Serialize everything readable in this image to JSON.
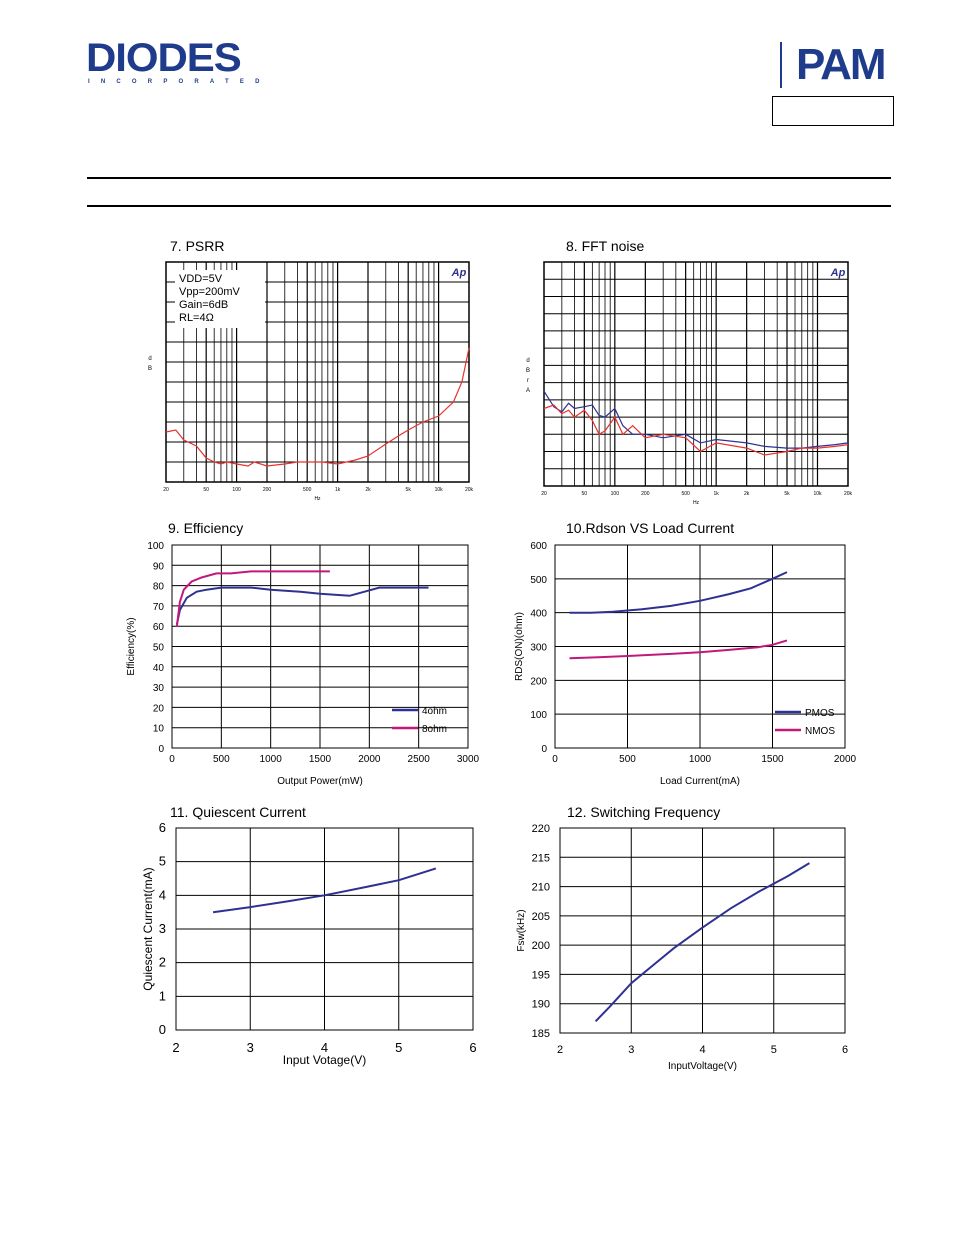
{
  "header": {
    "logo_left": {
      "word": "DIODES",
      "sub": "INCORPORATED"
    },
    "logo_right": {
      "word": "PAM"
    }
  },
  "charts": {
    "psrr": {
      "title": "7. PSRR",
      "ylabel": "dB",
      "xlabel": "Hz",
      "x_ticks": [
        "20",
        "50",
        "100",
        "200",
        "500",
        "1k",
        "2k",
        "5k",
        "10k",
        "20k"
      ],
      "legend": [
        "VDD=5V",
        "Vpp=200mV",
        "Gain=6dB",
        "RL=4Ω"
      ],
      "logo": "Ap"
    },
    "fft": {
      "title": "8. FFT noise",
      "ylabel": "dBrA",
      "xlabel": "Hz",
      "x_ticks": [
        "20",
        "50",
        "100",
        "200",
        "500",
        "1k",
        "2k",
        "5k",
        "10k",
        "20k"
      ],
      "logo": "Ap"
    },
    "efficiency": {
      "title": "9. Efficiency",
      "xlabel": "Output Power(mW)",
      "ylabel": "Efficiency(%)",
      "x_ticks": [
        "0",
        "500",
        "1000",
        "1500",
        "2000",
        "2500",
        "3000"
      ],
      "y_ticks": [
        "0",
        "10",
        "20",
        "30",
        "40",
        "50",
        "60",
        "70",
        "80",
        "90",
        "100"
      ],
      "legend": [
        "4ohm",
        "8ohm"
      ]
    },
    "rdson": {
      "title": "10.Rdson VS Load Current",
      "xlabel": "Load Current(mA)",
      "ylabel": "RDS(ON)(ohm)",
      "x_ticks": [
        "0",
        "500",
        "1000",
        "1500",
        "2000"
      ],
      "y_ticks": [
        "0",
        "100",
        "200",
        "300",
        "400",
        "500",
        "600"
      ],
      "legend": [
        "PMOS",
        "NMOS"
      ]
    },
    "quiescent": {
      "title": "11. Quiescent Current",
      "xlabel": "Input Votage(V)",
      "ylabel": "Quiescent Current(mA)",
      "x_ticks": [
        "2",
        "3",
        "4",
        "5",
        "6"
      ],
      "y_ticks": [
        "0",
        "1",
        "2",
        "3",
        "4",
        "5",
        "6"
      ]
    },
    "fsw": {
      "title": "12. Switching Frequency",
      "xlabel": "InputVoltage(V)",
      "ylabel": "Fsw(kHz)",
      "x_ticks": [
        "2",
        "3",
        "4",
        "5",
        "6"
      ],
      "y_ticks": [
        "185",
        "190",
        "195",
        "200",
        "205",
        "210",
        "215",
        "220"
      ]
    }
  },
  "colors": {
    "blue": "#2e3192",
    "magenta": "#c2187b",
    "red": "#e8322d",
    "brand": "#1f3c8c"
  },
  "chart_data": [
    {
      "type": "line",
      "title": "7. PSRR",
      "xlabel": "Hz",
      "ylabel": "dB",
      "xscale": "log",
      "xlim": [
        20,
        20000
      ],
      "ylim": [
        -110,
        0
      ],
      "series": [
        {
          "x": [
            20,
            25,
            30,
            40,
            50,
            60,
            70,
            80,
            100,
            130,
            150,
            200,
            300,
            400,
            500,
            700,
            1000,
            1500,
            2000,
            3000,
            4000,
            5000,
            7000,
            10000,
            14000,
            17000,
            20000
          ],
          "y": [
            -85,
            -84,
            -89,
            -92,
            -98,
            -100,
            -101,
            -100,
            -101,
            -102,
            -100,
            -102,
            -101,
            -100,
            -100,
            -100,
            -101,
            -99,
            -97,
            -91,
            -87,
            -84,
            -80,
            -77,
            -70,
            -60,
            -43
          ]
        }
      ]
    },
    {
      "type": "line",
      "title": "8. FFT noise",
      "xlabel": "Hz",
      "ylabel": "dBrA",
      "xscale": "log",
      "xlim": [
        20,
        20000
      ],
      "ylim": [
        -140,
        -10
      ],
      "series": [
        {
          "x": [
            20,
            25,
            30,
            35,
            40,
            50,
            60,
            70,
            80,
            100,
            120,
            150,
            200,
            300,
            500,
            700,
            1000,
            2000,
            3000,
            5000,
            7000,
            10000,
            15000,
            20000
          ],
          "y": [
            -85,
            -94,
            -97,
            -92,
            -95,
            -94,
            -93,
            -99,
            -100,
            -95,
            -105,
            -110,
            -110,
            -112,
            -110,
            -115,
            -113,
            -115,
            -117,
            -118,
            -118,
            -117,
            -116,
            -115
          ]
        },
        {
          "x": [
            20,
            25,
            30,
            35,
            40,
            50,
            60,
            70,
            80,
            100,
            120,
            150,
            200,
            300,
            500,
            700,
            1000,
            2000,
            3000,
            5000,
            7000,
            10000,
            15000,
            20000
          ],
          "y": [
            -95,
            -93,
            -98,
            -96,
            -100,
            -96,
            -102,
            -110,
            -108,
            -100,
            -110,
            -105,
            -112,
            -110,
            -112,
            -120,
            -115,
            -118,
            -122,
            -120,
            -118,
            -118,
            -117,
            -116
          ]
        }
      ]
    },
    {
      "type": "line",
      "title": "9. Efficiency",
      "xlabel": "Output Power(mW)",
      "ylabel": "Efficiency(%)",
      "xlim": [
        0,
        3000
      ],
      "ylim": [
        0,
        100
      ],
      "legend": "bottom-right",
      "series": [
        {
          "name": "4ohm",
          "x": [
            50,
            80,
            150,
            250,
            350,
            500,
            800,
            1000,
            1300,
            1500,
            1800,
            2100,
            2600
          ],
          "y": [
            61,
            68,
            74,
            77,
            78,
            79,
            79,
            78,
            77,
            76,
            75,
            79,
            79
          ]
        },
        {
          "name": "8ohm",
          "x": [
            50,
            80,
            120,
            200,
            300,
            450,
            600,
            800,
            1000,
            1300,
            1600
          ],
          "y": [
            60,
            72,
            78,
            82,
            84,
            86,
            86,
            87,
            87,
            87,
            87
          ]
        }
      ]
    },
    {
      "type": "line",
      "title": "10.Rdson VS Load Current",
      "xlabel": "Load Current(mA)",
      "ylabel": "RDS(ON)(ohm)",
      "xlim": [
        0,
        2000
      ],
      "ylim": [
        0,
        600
      ],
      "legend": "bottom-right",
      "series": [
        {
          "name": "PMOS",
          "x": [
            100,
            250,
            400,
            600,
            800,
            1000,
            1200,
            1350,
            1500,
            1600
          ],
          "y": [
            400,
            400,
            403,
            410,
            420,
            435,
            455,
            472,
            500,
            520
          ]
        },
        {
          "name": "NMOS",
          "x": [
            100,
            300,
            500,
            800,
            1000,
            1200,
            1400,
            1500,
            1600
          ],
          "y": [
            265,
            268,
            272,
            278,
            283,
            290,
            298,
            305,
            318
          ]
        }
      ]
    },
    {
      "type": "line",
      "title": "11. Quiescent Current",
      "xlabel": "Input Votage(V)",
      "ylabel": "Quiescent Current(mA)",
      "xlim": [
        2,
        6
      ],
      "ylim": [
        0,
        6
      ],
      "series": [
        {
          "x": [
            2.5,
            3.0,
            3.5,
            4.0,
            4.5,
            5.0,
            5.5
          ],
          "y": [
            3.5,
            3.65,
            3.82,
            4.0,
            4.22,
            4.45,
            4.8
          ]
        }
      ]
    },
    {
      "type": "line",
      "title": "12. Switching Frequency",
      "xlabel": "InputVoltage(V)",
      "ylabel": "Fsw(kHz)",
      "xlim": [
        2,
        6
      ],
      "ylim": [
        185,
        220
      ],
      "series": [
        {
          "x": [
            2.5,
            2.7,
            3.0,
            3.3,
            3.6,
            4.0,
            4.4,
            4.8,
            5.2,
            5.5
          ],
          "y": [
            187,
            189.5,
            193.5,
            196.5,
            199.5,
            203,
            206.3,
            209.2,
            211.8,
            214
          ]
        }
      ]
    }
  ]
}
